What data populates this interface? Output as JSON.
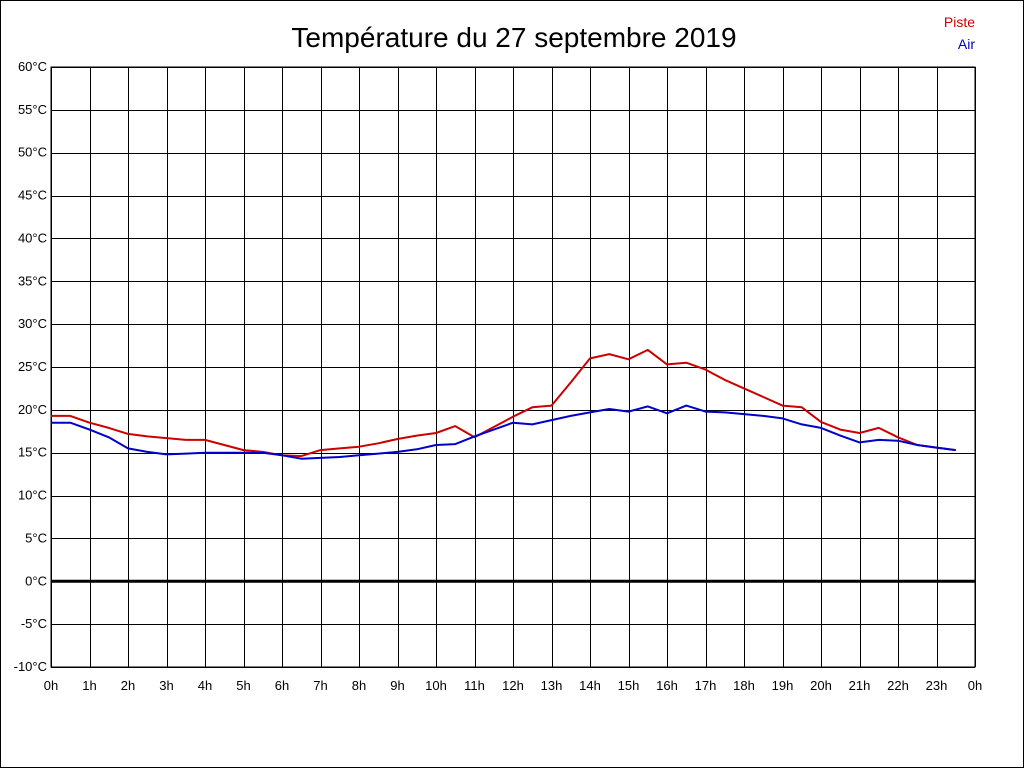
{
  "chart_data": {
    "type": "line",
    "title": "Température du 27 septembre 2019",
    "xlabel": "",
    "ylabel": "",
    "x_tick_labels": [
      "0h",
      "1h",
      "2h",
      "3h",
      "4h",
      "5h",
      "6h",
      "7h",
      "8h",
      "9h",
      "10h",
      "11h",
      "12h",
      "13h",
      "14h",
      "15h",
      "16h",
      "17h",
      "18h",
      "19h",
      "20h",
      "21h",
      "22h",
      "23h",
      "0h"
    ],
    "y_tick_labels": [
      "60°C",
      "55°C",
      "50°C",
      "45°C",
      "40°C",
      "35°C",
      "30°C",
      "25°C",
      "20°C",
      "15°C",
      "10°C",
      "5°C",
      "0°C",
      "-5°C",
      "-10°C"
    ],
    "xlim": [
      0,
      24
    ],
    "ylim": [
      -10,
      60
    ],
    "y_step": 5,
    "grid": true,
    "zero_line": true,
    "legend_position": "top-right",
    "x": [
      0,
      0.5,
      1,
      1.5,
      2,
      2.5,
      3,
      3.5,
      4,
      4.5,
      5,
      5.5,
      6,
      6.5,
      7,
      7.5,
      8,
      8.5,
      9,
      9.5,
      10,
      10.5,
      11,
      11.5,
      12,
      12.5,
      13,
      13.5,
      14,
      14.5,
      15,
      15.5,
      16,
      16.5,
      17,
      17.5,
      18,
      18.5,
      19,
      19.5,
      20,
      20.5,
      21,
      21.5,
      22,
      22.5,
      23,
      23.5
    ],
    "series": [
      {
        "name": "Piste",
        "color": "#cc0000",
        "values": [
          19.3,
          19.3,
          18.5,
          17.9,
          17.2,
          16.9,
          16.7,
          16.5,
          16.5,
          15.9,
          15.3,
          15.1,
          14.7,
          14.6,
          15.3,
          15.5,
          15.7,
          16.1,
          16.6,
          17.0,
          17.3,
          18.1,
          16.8,
          18.0,
          19.2,
          20.3,
          20.5,
          23.2,
          26.0,
          26.5,
          25.9,
          27.0,
          25.3,
          25.5,
          24.7,
          23.5,
          22.5,
          21.5,
          20.5,
          20.3,
          18.6,
          17.7,
          17.3,
          17.9,
          16.8,
          15.9,
          15.6,
          15.3
        ]
      },
      {
        "name": "Air",
        "color": "#0000cc",
        "values": [
          18.5,
          18.5,
          17.7,
          16.8,
          15.5,
          15.1,
          14.8,
          14.9,
          15.0,
          15.0,
          15.0,
          15.0,
          14.7,
          14.3,
          14.4,
          14.5,
          14.7,
          14.9,
          15.1,
          15.4,
          15.9,
          16.0,
          16.9,
          17.7,
          18.5,
          18.3,
          18.8,
          19.3,
          19.7,
          20.1,
          19.8,
          20.4,
          19.6,
          20.5,
          19.8,
          19.7,
          19.5,
          19.3,
          19.0,
          18.3,
          17.9,
          17.0,
          16.2,
          16.5,
          16.4,
          15.9,
          15.6,
          15.3
        ]
      }
    ]
  }
}
